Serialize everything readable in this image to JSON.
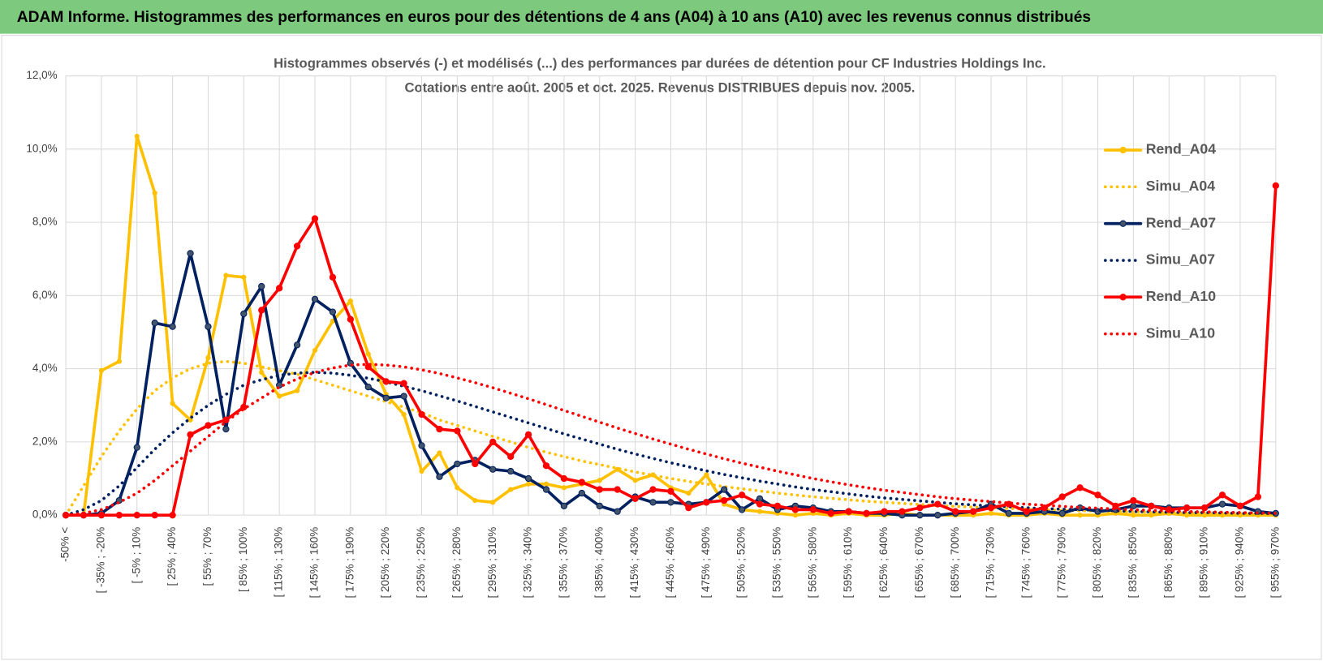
{
  "header": {
    "title": "ADAM Informe. Histogrammes des performances en euros pour des détentions de 4 ans (A04) à 10 ans (A10) avec les revenus connus distribués"
  },
  "chart_data": {
    "type": "line",
    "title": [
      "Histogrammes observés (-) et modélisés (...) des performances par durées de détention pour CF Industries Holdings Inc.",
      "Cotations entre août. 2005 et oct. 2025. Revenus DISTRIBUES depuis nov. 2005."
    ],
    "categories": [
      "-50% <",
      null,
      "[ -35% ; -20%",
      null,
      "[ -5% ; 10%",
      null,
      "[ 25% ; 40%",
      null,
      "[ 55% ; 70%",
      null,
      "[ 85% ; 100%",
      null,
      "[ 115% ; 130%",
      null,
      "[ 145% ; 160%",
      null,
      "[ 175% ; 190%",
      null,
      "[ 205% ; 220%",
      null,
      "[ 235% ; 250%",
      null,
      "[ 265% ; 280%",
      null,
      "[ 295% ; 310%",
      null,
      "[ 325% ; 340%",
      null,
      "[ 355% ; 370%",
      null,
      "[ 385% ; 400%",
      null,
      "[ 415% ; 430%",
      null,
      "[ 445% ; 460%",
      null,
      "[ 475% ; 490%",
      null,
      "[ 505% ; 520%",
      null,
      "[ 535% ; 550%",
      null,
      "[ 565% ; 580%",
      null,
      "[ 595% ; 610%",
      null,
      "[ 625% ; 640%",
      null,
      "[ 655% ; 670%",
      null,
      "[ 685% ; 700%",
      null,
      "[ 715% ; 730%",
      null,
      "[ 745% ; 760%",
      null,
      "[ 775% ; 790%",
      null,
      "[ 805% ; 820%",
      null,
      "[ 835% ; 850%",
      null,
      "[ 865% ; 880%",
      null,
      "[ 895% ; 910%",
      null,
      "[ 925% ; 940%",
      null,
      "[ 955% ; 970%"
    ],
    "series": [
      {
        "name": "Rend_A04",
        "color": "#ffc000",
        "style": "solid",
        "marker": true,
        "values": [
          0,
          0,
          3.95,
          4.2,
          10.35,
          8.8,
          3.05,
          2.6,
          4.3,
          6.55,
          6.5,
          3.9,
          3.25,
          3.4,
          4.5,
          5.3,
          5.85,
          4.4,
          3.3,
          2.75,
          1.2,
          1.7,
          0.75,
          0.4,
          0.35,
          0.7,
          0.85,
          0.85,
          0.75,
          0.85,
          0.95,
          1.25,
          0.95,
          1.1,
          0.75,
          0.6,
          1.1,
          0.3,
          0.15,
          0.1,
          0.05,
          0,
          0.05,
          0,
          0.05,
          0,
          0,
          0.05,
          0,
          0,
          0,
          0,
          0.05,
          0,
          0,
          0.05,
          0,
          0,
          0,
          0.05,
          0,
          0,
          0.05,
          0,
          0,
          0,
          0,
          0,
          0
        ]
      },
      {
        "name": "Simu_A04",
        "color": "#ffc000",
        "style": "dotted",
        "marker": false,
        "values": [
          0,
          0.8,
          1.6,
          2.3,
          2.9,
          3.4,
          3.75,
          4.0,
          4.15,
          4.2,
          4.15,
          4.05,
          3.95,
          3.85,
          3.7,
          3.55,
          3.4,
          3.25,
          3.1,
          2.95,
          2.8,
          2.6,
          2.45,
          2.3,
          2.15,
          2.0,
          1.85,
          1.72,
          1.6,
          1.48,
          1.38,
          1.28,
          1.18,
          1.09,
          1.0,
          0.92,
          0.85,
          0.78,
          0.72,
          0.66,
          0.6,
          0.55,
          0.5,
          0.46,
          0.42,
          0.38,
          0.35,
          0.32,
          0.29,
          0.26,
          0.24,
          0.22,
          0.2,
          0.18,
          0.16,
          0.15,
          0.13,
          0.12,
          0.11,
          0.1,
          0.09,
          0.08,
          0.07,
          0.06,
          0.06,
          0.05,
          0.05,
          0.04,
          0.04
        ]
      },
      {
        "name": "Rend_A07",
        "color": "#002060",
        "style": "solid",
        "marker": true,
        "values": [
          0,
          0,
          0.05,
          0.4,
          1.85,
          5.25,
          5.15,
          7.15,
          5.15,
          2.35,
          5.5,
          6.25,
          3.55,
          4.65,
          5.9,
          5.55,
          4.15,
          3.5,
          3.2,
          3.25,
          1.9,
          1.05,
          1.4,
          1.5,
          1.25,
          1.2,
          1.0,
          0.7,
          0.25,
          0.6,
          0.25,
          0.1,
          0.5,
          0.35,
          0.35,
          0.3,
          0.35,
          0.7,
          0.15,
          0.45,
          0.15,
          0.25,
          0.2,
          0.1,
          0.1,
          0.05,
          0.05,
          0,
          0,
          0,
          0.05,
          0.1,
          0.3,
          0.05,
          0.05,
          0.1,
          0.05,
          0.2,
          0.1,
          0.15,
          0.25,
          0.25,
          0.2,
          0.2,
          0.2,
          0.3,
          0.25,
          0.1,
          0.05
        ]
      },
      {
        "name": "Simu_A07",
        "color": "#002060",
        "style": "dotted",
        "marker": false,
        "values": [
          0,
          0.15,
          0.4,
          0.8,
          1.3,
          1.8,
          2.25,
          2.65,
          3.0,
          3.3,
          3.55,
          3.7,
          3.82,
          3.88,
          3.9,
          3.88,
          3.82,
          3.74,
          3.64,
          3.52,
          3.4,
          3.26,
          3.12,
          2.97,
          2.82,
          2.67,
          2.52,
          2.37,
          2.22,
          2.08,
          1.94,
          1.8,
          1.67,
          1.55,
          1.43,
          1.32,
          1.21,
          1.11,
          1.02,
          0.93,
          0.85,
          0.77,
          0.7,
          0.64,
          0.58,
          0.52,
          0.47,
          0.43,
          0.39,
          0.35,
          0.31,
          0.28,
          0.25,
          0.23,
          0.2,
          0.18,
          0.16,
          0.15,
          0.13,
          0.12,
          0.1,
          0.09,
          0.08,
          0.07,
          0.07,
          0.06,
          0.05,
          0.05,
          0.04
        ]
      },
      {
        "name": "Rend_A10",
        "color": "#ff0000",
        "style": "solid",
        "marker": true,
        "values": [
          0,
          0,
          0,
          0,
          0,
          0,
          0,
          2.2,
          2.45,
          2.6,
          2.95,
          5.6,
          6.2,
          7.35,
          8.1,
          6.5,
          5.35,
          4.05,
          3.65,
          3.6,
          2.75,
          2.35,
          2.3,
          1.4,
          2.0,
          1.6,
          2.2,
          1.35,
          1.0,
          0.9,
          0.7,
          0.7,
          0.45,
          0.7,
          0.65,
          0.2,
          0.35,
          0.4,
          0.55,
          0.3,
          0.25,
          0.15,
          0.15,
          0.05,
          0.1,
          0.05,
          0.1,
          0.1,
          0.2,
          0.3,
          0.1,
          0.1,
          0.2,
          0.3,
          0.1,
          0.2,
          0.5,
          0.75,
          0.55,
          0.25,
          0.4,
          0.25,
          0.15,
          0.2,
          0.2,
          0.55,
          0.25,
          0.5,
          9.0
        ]
      },
      {
        "name": "Simu_A10",
        "color": "#ff0000",
        "style": "dotted",
        "marker": false,
        "values": [
          0,
          0.05,
          0.15,
          0.35,
          0.6,
          0.95,
          1.35,
          1.75,
          2.15,
          2.55,
          2.9,
          3.2,
          3.5,
          3.72,
          3.9,
          4.02,
          4.1,
          4.12,
          4.1,
          4.05,
          3.97,
          3.87,
          3.75,
          3.62,
          3.48,
          3.33,
          3.18,
          3.02,
          2.86,
          2.7,
          2.54,
          2.38,
          2.23,
          2.08,
          1.94,
          1.8,
          1.67,
          1.54,
          1.42,
          1.31,
          1.2,
          1.1,
          1.0,
          0.91,
          0.83,
          0.75,
          0.68,
          0.62,
          0.56,
          0.5,
          0.45,
          0.41,
          0.37,
          0.33,
          0.3,
          0.27,
          0.24,
          0.21,
          0.19,
          0.17,
          0.15,
          0.13,
          0.12,
          0.1,
          0.09,
          0.08,
          0.07,
          0.06,
          0.05
        ]
      }
    ],
    "ylim": [
      0,
      12
    ],
    "yticks": [
      {
        "value": 0,
        "label": "0,0%"
      },
      {
        "value": 2,
        "label": "2,0%"
      },
      {
        "value": 4,
        "label": "4,0%"
      },
      {
        "value": 6,
        "label": "6,0%"
      },
      {
        "value": 8,
        "label": "8,0%"
      },
      {
        "value": 10,
        "label": "10,0%"
      },
      {
        "value": 12,
        "label": "12,0%"
      }
    ],
    "grid": true,
    "legend": "right"
  }
}
